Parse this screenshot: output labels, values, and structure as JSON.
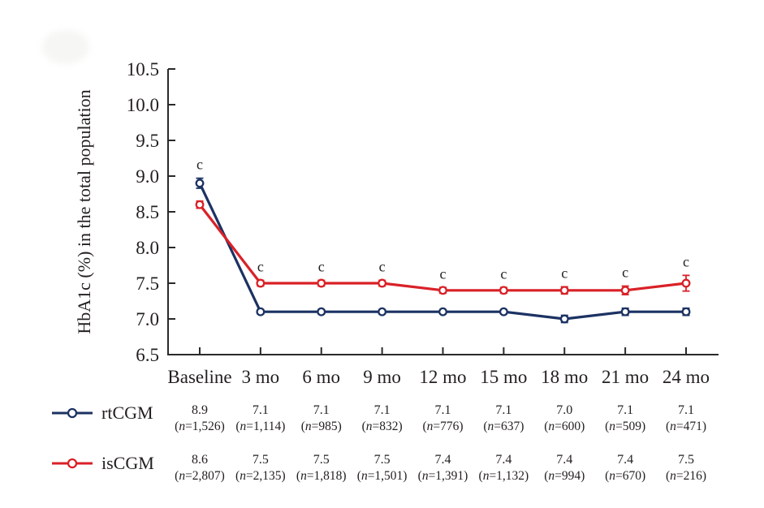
{
  "page": {
    "background": "#ffffff",
    "text_color": "#231f20"
  },
  "chart_data": {
    "type": "line",
    "title": "",
    "xlabel": "",
    "ylabel": "HbA1c (%) in the total population",
    "categories": [
      "Baseline",
      "3 mo",
      "6 mo",
      "9 mo",
      "12 mo",
      "15 mo",
      "18 mo",
      "21 mo",
      "24 mo"
    ],
    "ylim": [
      6.5,
      10.5
    ],
    "ytick_step": 0.5,
    "ytick_labels": [
      "10.5",
      "10.0",
      "9.5",
      "9.0",
      "8.5",
      "8.0",
      "7.5",
      "7.0",
      "6.5"
    ],
    "grid": false,
    "axis_color": "#2b2a29",
    "legend_position": "bottom-left-table",
    "annotation_label": "c",
    "series": [
      {
        "name": "rtCGM",
        "color": "#1c3263",
        "values": [
          8.9,
          7.1,
          7.1,
          7.1,
          7.1,
          7.1,
          7.0,
          7.1,
          7.1
        ],
        "errors": [
          0.07,
          0.03,
          0.03,
          0.03,
          0.03,
          0.03,
          0.05,
          0.05,
          0.05
        ],
        "display_values": [
          "8.9",
          "7.1",
          "7.1",
          "7.1",
          "7.1",
          "7.1",
          "7.0",
          "7.1",
          "7.1"
        ],
        "counts": [
          "(n=1,526)",
          "(n=1,114)",
          "(n=985)",
          "(n=832)",
          "(n=776)",
          "(n=637)",
          "(n=600)",
          "(n=509)",
          "(n=471)"
        ],
        "annotated_points": [
          0
        ]
      },
      {
        "name": "isCGM",
        "color": "#d92127",
        "values": [
          8.6,
          7.5,
          7.5,
          7.5,
          7.4,
          7.4,
          7.4,
          7.4,
          7.5
        ],
        "errors": [
          0.05,
          0.04,
          0.04,
          0.04,
          0.04,
          0.04,
          0.05,
          0.06,
          0.11
        ],
        "display_values": [
          "8.6",
          "7.5",
          "7.5",
          "7.5",
          "7.4",
          "7.4",
          "7.4",
          "7.4",
          "7.5"
        ],
        "counts": [
          "(n=2,807)",
          "(n=2,135)",
          "(n=1,818)",
          "(n=1,501)",
          "(n=1,391)",
          "(n=1,132)",
          "(n=994)",
          "(n=670)",
          "(n=216)"
        ],
        "annotated_points": [
          1,
          2,
          3,
          4,
          5,
          6,
          7,
          8
        ]
      }
    ]
  }
}
